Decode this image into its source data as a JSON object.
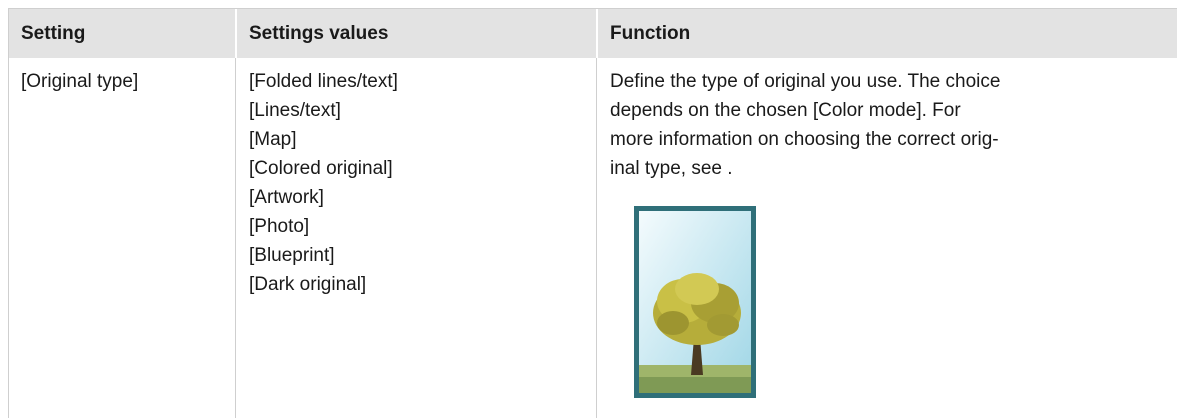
{
  "table": {
    "header": [
      "Setting",
      "Settings values",
      "Function"
    ],
    "rows": [
      {
        "setting": "[Original type]",
        "values": [
          "[Folded lines/text]",
          "[Lines/text]",
          "[Map]",
          "[Colored original]",
          "[Artwork]",
          "[Photo]",
          "[Blueprint]",
          "[Dark original]"
        ],
        "function": [
          "Define the type of original you use. The choice",
          "depends on the chosen [Color mode]. For",
          "more information on choosing the correct orig-",
          "inal type, see ."
        ]
      }
    ]
  }
}
